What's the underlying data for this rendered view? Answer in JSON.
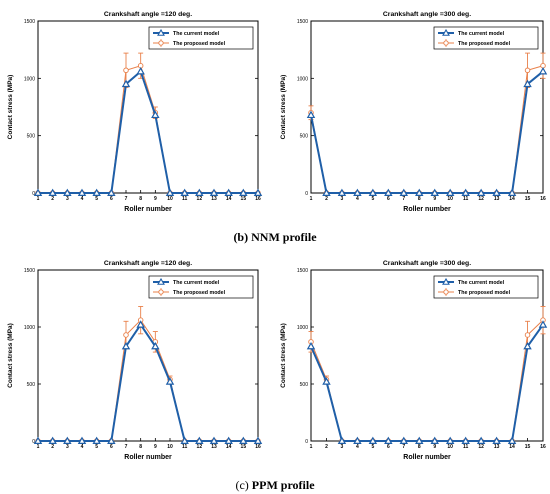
{
  "captions": [
    {
      "letter": "(b)",
      "text": "NNM profile"
    },
    {
      "letter": "(c)",
      "text": "PPM profile"
    }
  ],
  "colors": {
    "current": "#1f5fa8",
    "proposed": "#e9804a",
    "axis": "#000000",
    "legend_border": "#000000"
  },
  "chart_data": [
    {
      "type": "line",
      "title": "Crankshaft angle =120 deg.",
      "xlabel": "Roller number",
      "ylabel": "Contact stress (MPa)",
      "xlim": [
        1,
        16
      ],
      "ylim": [
        0,
        1500
      ],
      "yticks": [
        0,
        500,
        1000,
        1500
      ],
      "x": [
        1,
        2,
        3,
        4,
        5,
        6,
        7,
        8,
        9,
        10,
        11,
        12,
        13,
        14,
        15,
        16
      ],
      "legend": "top-right",
      "series": [
        {
          "name": "The current model",
          "marker": "triangle",
          "values": [
            0,
            0,
            0,
            0,
            0,
            0,
            950,
            1060,
            680,
            0,
            0,
            0,
            0,
            0,
            0,
            0
          ]
        },
        {
          "name": "The proposed model",
          "marker": "circle",
          "values": [
            0,
            0,
            0,
            0,
            0,
            0,
            1070,
            1110,
            700,
            0,
            0,
            0,
            0,
            0,
            0,
            0
          ],
          "error": [
            0,
            0,
            0,
            0,
            0,
            0,
            150,
            110,
            50,
            0,
            0,
            0,
            0,
            0,
            0,
            0
          ]
        }
      ]
    },
    {
      "type": "line",
      "title": "Crankshaft angle =300 deg.",
      "xlabel": "Roller number",
      "ylabel": "Contact stress (MPa)",
      "xlim": [
        1,
        16
      ],
      "ylim": [
        0,
        1500
      ],
      "yticks": [
        0,
        500,
        1000,
        1500
      ],
      "x": [
        1,
        2,
        3,
        4,
        5,
        6,
        7,
        8,
        9,
        10,
        11,
        12,
        13,
        14,
        15,
        16
      ],
      "legend": "top-right",
      "series": [
        {
          "name": "The current model",
          "marker": "triangle",
          "values": [
            680,
            0,
            0,
            0,
            0,
            0,
            0,
            0,
            0,
            0,
            0,
            0,
            0,
            0,
            950,
            1060
          ]
        },
        {
          "name": "The proposed model",
          "marker": "circle",
          "values": [
            700,
            0,
            0,
            0,
            0,
            0,
            0,
            0,
            0,
            0,
            0,
            0,
            0,
            0,
            1070,
            1110
          ],
          "error": [
            60,
            0,
            0,
            0,
            0,
            0,
            0,
            0,
            0,
            0,
            0,
            0,
            0,
            0,
            150,
            110
          ]
        }
      ]
    },
    {
      "type": "line",
      "title": "Crankshaft angle =120 deg.",
      "xlabel": "Roller number",
      "ylabel": "Contact stress (MPa)",
      "xlim": [
        1,
        16
      ],
      "ylim": [
        0,
        1500
      ],
      "yticks": [
        0,
        500,
        1000,
        1500
      ],
      "x": [
        1,
        2,
        3,
        4,
        5,
        6,
        7,
        8,
        9,
        10,
        11,
        12,
        13,
        14,
        15,
        16
      ],
      "legend": "top-right",
      "series": [
        {
          "name": "The current model",
          "marker": "triangle",
          "values": [
            0,
            0,
            0,
            0,
            0,
            0,
            830,
            1020,
            830,
            520,
            0,
            0,
            0,
            0,
            0,
            0
          ]
        },
        {
          "name": "The proposed model",
          "marker": "circle",
          "values": [
            0,
            0,
            0,
            0,
            0,
            0,
            930,
            1060,
            870,
            540,
            0,
            0,
            0,
            0,
            0,
            0
          ],
          "error": [
            0,
            0,
            0,
            0,
            0,
            0,
            120,
            120,
            90,
            30,
            0,
            0,
            0,
            0,
            0,
            0
          ]
        }
      ]
    },
    {
      "type": "line",
      "title": "Crankshaft angle =300 deg.",
      "xlabel": "Roller number",
      "ylabel": "Contact stress (MPa)",
      "xlim": [
        1,
        16
      ],
      "ylim": [
        0,
        1500
      ],
      "yticks": [
        0,
        500,
        1000,
        1500
      ],
      "x": [
        1,
        2,
        3,
        4,
        5,
        6,
        7,
        8,
        9,
        10,
        11,
        12,
        13,
        14,
        15,
        16
      ],
      "legend": "top-right",
      "series": [
        {
          "name": "The current model",
          "marker": "triangle",
          "values": [
            830,
            520,
            0,
            0,
            0,
            0,
            0,
            0,
            0,
            0,
            0,
            0,
            0,
            0,
            830,
            1020
          ]
        },
        {
          "name": "The proposed model",
          "marker": "circle",
          "values": [
            870,
            540,
            0,
            0,
            0,
            0,
            0,
            0,
            0,
            0,
            0,
            0,
            0,
            0,
            930,
            1060
          ],
          "error": [
            90,
            30,
            0,
            0,
            0,
            0,
            0,
            0,
            0,
            0,
            0,
            0,
            0,
            0,
            120,
            120
          ]
        }
      ]
    }
  ]
}
